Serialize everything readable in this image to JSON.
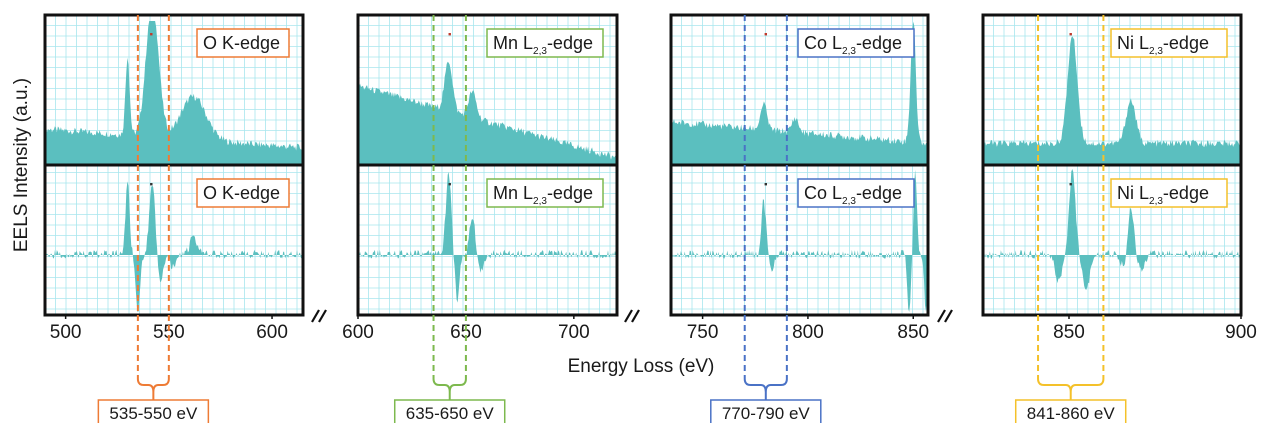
{
  "chart_data": {
    "type": "area",
    "ylabel": "EELS Intensity (a.u.)",
    "xlabel": "Energy Loss (eV)",
    "grid": true,
    "fill_color": "#5bbfbf",
    "grid_color": "#a8e6ee",
    "panels": [
      {
        "edge": "O K-edge",
        "edge_main": "O K-edge",
        "edge_sub": "",
        "edge_tail": "",
        "color": "#ee7b35",
        "xlim": [
          490,
          615
        ],
        "ticks": [
          500,
          550,
          600
        ],
        "range": [
          535,
          550
        ],
        "range_label": "535-550 eV",
        "raw_peaks": [
          [
            530,
            0.55,
            1.0
          ],
          [
            542,
            0.95,
            3.0
          ],
          [
            562,
            0.3,
            6.0
          ]
        ],
        "raw_baseline": [
          [
            490,
            0.25
          ],
          [
            615,
            0.12
          ]
        ],
        "deriv_peaks": [
          [
            530,
            0.85,
            1.0
          ],
          [
            542,
            0.8,
            1.4
          ],
          [
            562,
            0.2,
            2.0
          ]
        ],
        "deriv_neg": [
          [
            535,
            -0.95,
            1.0
          ],
          [
            546,
            -0.45,
            1.2
          ],
          [
            552,
            -0.2,
            1.5
          ]
        ]
      },
      {
        "edge": "Mn L2,3-edge",
        "edge_main": "Mn L",
        "edge_sub": "2,3",
        "edge_tail": "-edge",
        "color": "#7db94e",
        "xlim": [
          600,
          720
        ],
        "ticks": [
          600,
          650,
          700
        ],
        "range": [
          635,
          650
        ],
        "range_label": "635-650 eV",
        "raw_peaks": [
          [
            642,
            0.35,
            1.8
          ],
          [
            653,
            0.18,
            1.8
          ]
        ],
        "raw_baseline": [
          [
            600,
            0.55
          ],
          [
            720,
            0.05
          ]
        ],
        "deriv_peaks": [
          [
            642,
            0.95,
            1.3
          ],
          [
            653,
            0.45,
            1.3
          ]
        ],
        "deriv_neg": [
          [
            646,
            -0.75,
            1.0
          ],
          [
            657,
            -0.25,
            1.2
          ]
        ]
      },
      {
        "edge": "Co L2,3-edge",
        "edge_main": "Co L",
        "edge_sub": "2,3",
        "edge_tail": "-edge",
        "color": "#4a72c6",
        "xlim": [
          735,
          857
        ],
        "ticks": [
          750,
          800,
          850
        ],
        "range": [
          770,
          790
        ],
        "range_label": "770-790 eV",
        "raw_peaks": [
          [
            779,
            0.18,
            1.5
          ],
          [
            794,
            0.1,
            1.5
          ],
          [
            850,
            0.85,
            1.2
          ]
        ],
        "raw_baseline": [
          [
            735,
            0.3
          ],
          [
            857,
            0.15
          ]
        ],
        "deriv_peaks": [
          [
            779,
            0.65,
            1.0
          ],
          [
            851,
            1.0,
            0.8
          ]
        ],
        "deriv_neg": [
          [
            783,
            -0.25,
            1.0
          ],
          [
            848,
            -1.0,
            0.8
          ],
          [
            856,
            -1.0,
            0.7
          ]
        ]
      },
      {
        "edge": "Ni L2,3-edge",
        "edge_main": "Ni L",
        "edge_sub": "2,3",
        "edge_tail": "-edge",
        "color": "#f4c12a",
        "xlim": [
          825,
          900
        ],
        "ticks": [
          850,
          900
        ],
        "range": [
          841,
          860
        ],
        "range_label": "841-860 eV",
        "raw_peaks": [
          [
            851,
            0.75,
            1.4
          ],
          [
            868,
            0.3,
            1.4
          ]
        ],
        "raw_baseline": [
          [
            825,
            0.15
          ],
          [
            900,
            0.15
          ]
        ],
        "deriv_peaks": [
          [
            851,
            1.0,
            0.9
          ],
          [
            868,
            0.55,
            0.9
          ]
        ],
        "deriv_neg": [
          [
            847,
            -0.45,
            1.0
          ],
          [
            855,
            -0.6,
            1.0
          ],
          [
            866,
            -0.2,
            1.0
          ],
          [
            871,
            -0.25,
            1.0
          ]
        ]
      }
    ]
  }
}
